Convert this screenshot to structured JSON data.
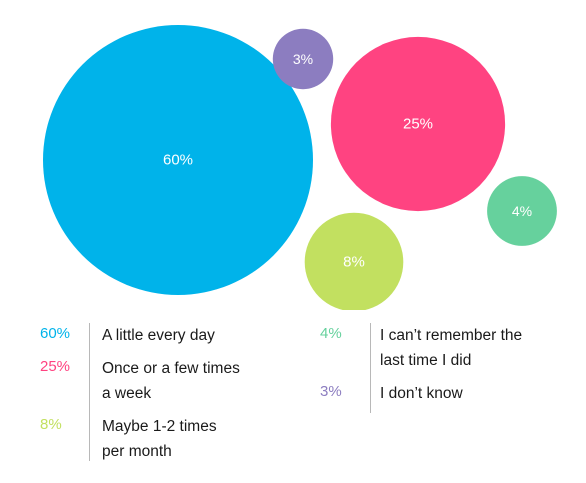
{
  "chart_data": {
    "type": "bubble",
    "title": "",
    "series": [
      {
        "label": "A little every day",
        "value": 60,
        "value_label": "60%",
        "color": "#00b3ea",
        "text_lines": [
          "A little every day"
        ]
      },
      {
        "label": "Once or a few times a week",
        "value": 25,
        "value_label": "25%",
        "color": "#ff4381",
        "text_lines": [
          "Once or a few times",
          "a week"
        ]
      },
      {
        "label": "Maybe 1-2 times per month",
        "value": 8,
        "value_label": "8%",
        "color": "#c2e060",
        "text_lines": [
          "Maybe 1-2 times",
          "per month"
        ]
      },
      {
        "label": "I can't remember the last time I did",
        "value": 4,
        "value_label": "4%",
        "color": "#66d19d",
        "text_lines": [
          "I can’t remember the",
          "last time I did"
        ]
      },
      {
        "label": "I don't know",
        "value": 3,
        "value_label": "3%",
        "color": "#8c7dc0",
        "text_lines": [
          "I don’t know"
        ]
      }
    ],
    "legend_placement": "bottom"
  }
}
